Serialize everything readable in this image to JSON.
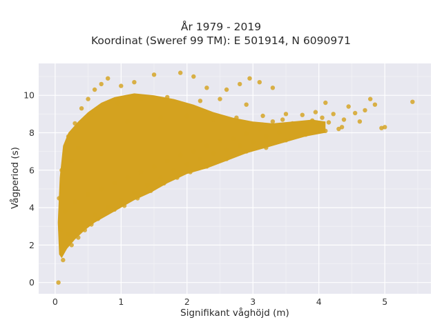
{
  "chart_data": {
    "type": "scatter",
    "title_lines": [
      "År 1979 - 2019",
      "Koordinat (Sweref 99 TM): E 501914, N 6090971"
    ],
    "xlabel": "Signifikant våghöjd (m)",
    "ylabel": "Vågperiod (s)",
    "xlim": [
      -0.25,
      5.7
    ],
    "ylim": [
      -0.6,
      11.7
    ],
    "x_ticks": [
      0,
      1,
      2,
      3,
      4,
      5
    ],
    "y_ticks": [
      0,
      2,
      4,
      6,
      8,
      10
    ],
    "grid": true,
    "legend": "none",
    "marker_color": "#D4A21F",
    "background_color": "#E8E8F0",
    "points": [
      [
        0.05,
        0.0
      ],
      [
        5.42,
        9.65
      ],
      [
        5.0,
        8.3
      ],
      [
        4.95,
        8.25
      ],
      [
        4.85,
        9.5
      ],
      [
        4.78,
        9.8
      ],
      [
        4.7,
        9.2
      ],
      [
        4.62,
        8.6
      ],
      [
        4.55,
        9.05
      ],
      [
        4.45,
        9.4
      ],
      [
        4.38,
        8.7
      ],
      [
        4.3,
        8.2
      ],
      [
        4.22,
        9.0
      ],
      [
        4.15,
        8.55
      ],
      [
        4.1,
        9.6
      ],
      [
        4.05,
        8.8
      ],
      [
        4.0,
        8.4
      ],
      [
        3.95,
        9.1
      ],
      [
        3.9,
        8.65
      ],
      [
        3.82,
        8.3
      ],
      [
        3.75,
        8.95
      ],
      [
        3.6,
        8.5
      ],
      [
        3.5,
        9.0
      ],
      [
        3.4,
        8.0
      ],
      [
        3.3,
        8.6
      ],
      [
        3.2,
        7.8
      ],
      [
        3.1,
        8.2
      ],
      [
        3.0,
        7.5
      ],
      [
        2.9,
        7.95
      ],
      [
        2.8,
        7.3
      ],
      [
        2.7,
        7.7
      ],
      [
        2.6,
        7.1
      ],
      [
        2.5,
        7.55
      ],
      [
        2.4,
        6.9
      ],
      [
        2.3,
        7.3
      ],
      [
        2.2,
        6.6
      ],
      [
        2.1,
        7.0
      ],
      [
        2.0,
        6.3
      ],
      [
        1.9,
        6.8
      ],
      [
        1.8,
        6.0
      ],
      [
        1.7,
        6.5
      ],
      [
        1.6,
        5.6
      ],
      [
        1.5,
        6.2
      ],
      [
        1.4,
        5.2
      ],
      [
        1.3,
        5.9
      ],
      [
        1.2,
        4.8
      ],
      [
        1.1,
        5.6
      ],
      [
        1.0,
        4.4
      ],
      [
        0.9,
        5.3
      ],
      [
        0.8,
        4.0
      ],
      [
        0.7,
        5.0
      ],
      [
        0.6,
        3.6
      ],
      [
        0.5,
        4.7
      ],
      [
        0.4,
        3.2
      ],
      [
        0.3,
        4.3
      ],
      [
        0.2,
        2.6
      ],
      [
        0.15,
        3.8
      ],
      [
        0.1,
        1.6
      ],
      [
        0.08,
        2.8
      ],
      [
        0.06,
        4.5
      ],
      [
        0.12,
        1.2
      ],
      [
        0.25,
        2.0
      ],
      [
        0.35,
        2.4
      ],
      [
        0.45,
        2.8
      ],
      [
        0.55,
        3.1
      ],
      [
        0.65,
        3.4
      ],
      [
        0.75,
        3.7
      ],
      [
        0.9,
        3.9
      ],
      [
        1.05,
        4.1
      ],
      [
        1.25,
        4.5
      ],
      [
        1.45,
        4.9
      ],
      [
        1.65,
        5.3
      ],
      [
        1.85,
        5.6
      ],
      [
        2.05,
        5.9
      ],
      [
        2.3,
        6.2
      ],
      [
        2.6,
        6.6
      ],
      [
        2.9,
        7.0
      ],
      [
        3.2,
        7.2
      ],
      [
        3.5,
        7.6
      ],
      [
        3.8,
        7.9
      ],
      [
        4.1,
        8.1
      ],
      [
        4.35,
        8.3
      ],
      [
        0.1,
        6.0
      ],
      [
        0.15,
        7.0
      ],
      [
        0.2,
        7.8
      ],
      [
        0.3,
        8.5
      ],
      [
        0.4,
        9.3
      ],
      [
        0.5,
        9.8
      ],
      [
        0.6,
        10.3
      ],
      [
        0.7,
        10.6
      ],
      [
        0.8,
        10.9
      ],
      [
        1.0,
        10.5
      ],
      [
        1.2,
        10.7
      ],
      [
        1.5,
        11.1
      ],
      [
        1.9,
        11.2
      ],
      [
        2.1,
        11.0
      ],
      [
        2.3,
        10.4
      ],
      [
        2.6,
        10.3
      ],
      [
        2.8,
        10.6
      ],
      [
        2.95,
        10.9
      ],
      [
        3.1,
        10.7
      ],
      [
        3.3,
        10.4
      ],
      [
        1.3,
        9.8
      ],
      [
        1.7,
        9.9
      ],
      [
        2.2,
        9.7
      ],
      [
        2.5,
        9.8
      ],
      [
        2.9,
        9.5
      ],
      [
        0.95,
        9.6
      ],
      [
        0.55,
        9.0
      ],
      [
        0.35,
        7.2
      ],
      [
        0.25,
        6.5
      ],
      [
        1.1,
        8.6
      ],
      [
        1.6,
        8.8
      ],
      [
        2.0,
        8.9
      ],
      [
        2.4,
        8.7
      ],
      [
        2.75,
        8.8
      ],
      [
        3.15,
        8.9
      ],
      [
        3.45,
        8.7
      ]
    ]
  }
}
